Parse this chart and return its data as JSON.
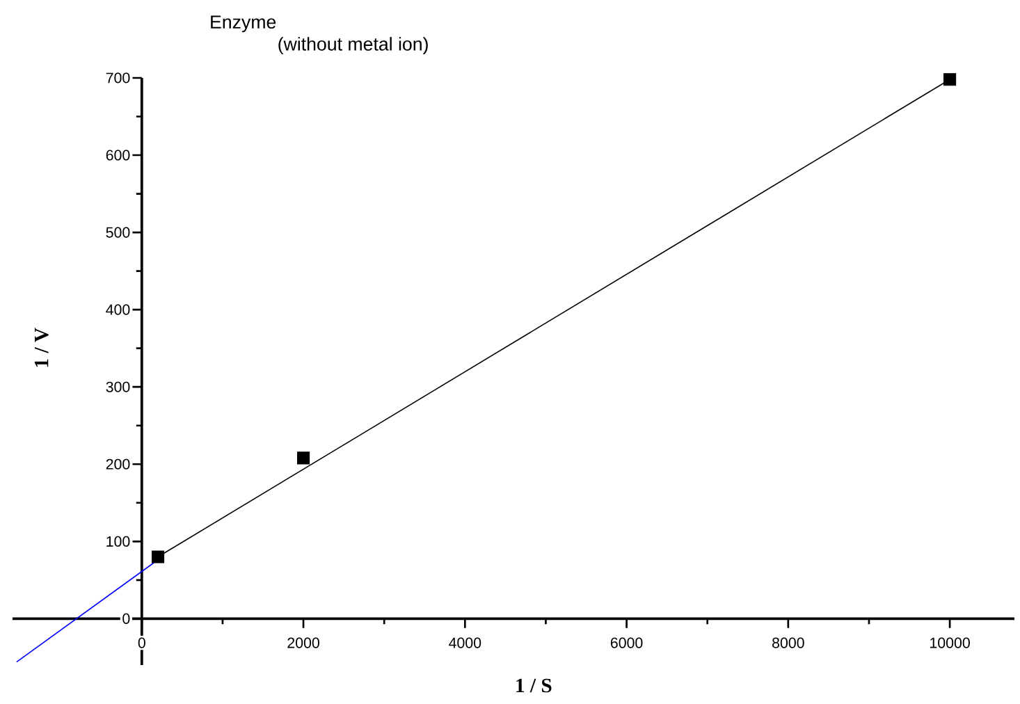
{
  "chart_data": {
    "type": "scatter",
    "title": "Enzyme",
    "subtitle": "(without metal ion)",
    "xlabel": "1 / S",
    "ylabel": "1 / V",
    "xlim": [
      -1600,
      10800
    ],
    "ylim": [
      -60,
      700
    ],
    "xticks": [
      0,
      2000,
      4000,
      6000,
      8000,
      10000
    ],
    "yticks": [
      0,
      100,
      200,
      300,
      400,
      500,
      600,
      700
    ],
    "grid": false,
    "series": [
      {
        "marker": "square",
        "color": "#000000",
        "x": [
          200,
          2000,
          10000
        ],
        "values": [
          80,
          208,
          698
        ]
      },
      {
        "type": "line",
        "marker": "none",
        "line_style": "solid",
        "color": "#000000",
        "x": [
          200,
          10000
        ],
        "values": [
          80,
          698
        ]
      },
      {
        "type": "line",
        "marker": "none",
        "line_style": "solid",
        "color": "#0000ff",
        "x": [
          -1550,
          250
        ],
        "values": [
          -56,
          80
        ]
      }
    ]
  }
}
